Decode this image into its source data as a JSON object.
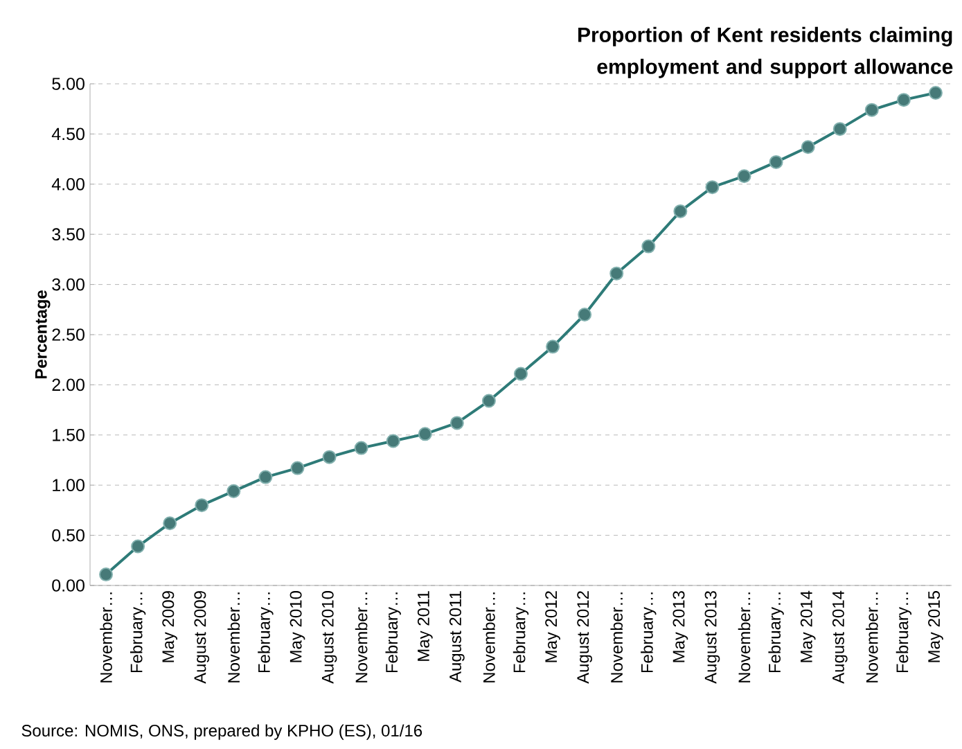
{
  "chart_data": {
    "type": "line",
    "title": "Proportion of Kent residents claiming  employment and support allowance",
    "ylabel": "Percentage",
    "categories": [
      "November…",
      "February…",
      "May 2009",
      "August 2009",
      "November…",
      "February…",
      "May 2010",
      "August 2010",
      "November…",
      "February…",
      "May 2011",
      "August 2011",
      "November…",
      "February…",
      "May 2012",
      "August 2012",
      "November…",
      "February…",
      "May 2013",
      "August 2013",
      "November…",
      "February…",
      "May 2014",
      "August 2014",
      "November…",
      "February…",
      "May 2015"
    ],
    "series": [
      {
        "color": "#2e7b78",
        "values": [
          0.11,
          0.39,
          0.62,
          0.8,
          0.94,
          1.08,
          1.17,
          1.28,
          1.37,
          1.44,
          1.51,
          1.62,
          1.84,
          2.11,
          2.38,
          2.7,
          3.11,
          3.38,
          3.73,
          3.97,
          4.08,
          4.22,
          4.37,
          4.55,
          4.74,
          4.84,
          4.91
        ]
      }
    ],
    "ylim": [
      0,
      5
    ],
    "yticks": [
      {
        "value": 0,
        "label": "0.00"
      },
      {
        "value": 0.5,
        "label": "0.50"
      },
      {
        "value": 1,
        "label": "1.00"
      },
      {
        "value": 1.5,
        "label": "1.50"
      },
      {
        "value": 2,
        "label": "2.00"
      },
      {
        "value": 2.5,
        "label": "2.50"
      },
      {
        "value": 3,
        "label": "3.00"
      },
      {
        "value": 3.5,
        "label": "3.50"
      },
      {
        "value": 4,
        "label": "4.00"
      },
      {
        "value": 4.5,
        "label": "4.50"
      },
      {
        "value": 5,
        "label": "5.00"
      }
    ],
    "grid": "y",
    "marker": "circle",
    "line_style": "solid",
    "annotations": [
      "Source: NOMIS, ONS, prepared by KPHO (ES), 01/16"
    ]
  }
}
